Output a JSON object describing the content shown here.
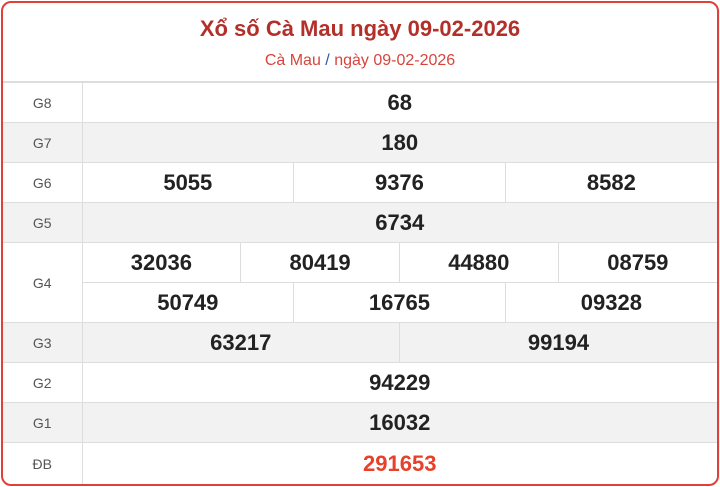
{
  "header": {
    "title": "Xổ số Cà Mau ngày 09-02-2026",
    "breadcrumb_province": "Cà Mau",
    "breadcrumb_separator": "/",
    "breadcrumb_date": "ngày 09-02-2026"
  },
  "colors": {
    "border": "#e0403a",
    "title": "#b3302a",
    "special_prize": "#e8412a",
    "alt_row": "#f2f2f2"
  },
  "prizes": {
    "g8": {
      "label": "G8",
      "numbers": [
        "68"
      ]
    },
    "g7": {
      "label": "G7",
      "numbers": [
        "180"
      ]
    },
    "g6": {
      "label": "G6",
      "numbers": [
        "5055",
        "9376",
        "8582"
      ]
    },
    "g5": {
      "label": "G5",
      "numbers": [
        "6734"
      ]
    },
    "g4": {
      "label": "G4",
      "numbers": [
        "32036",
        "80419",
        "44880",
        "08759",
        "50749",
        "16765",
        "09328"
      ]
    },
    "g3": {
      "label": "G3",
      "numbers": [
        "63217",
        "99194"
      ]
    },
    "g2": {
      "label": "G2",
      "numbers": [
        "94229"
      ]
    },
    "g1": {
      "label": "G1",
      "numbers": [
        "16032"
      ]
    },
    "db": {
      "label": "ĐB",
      "numbers": [
        "291653"
      ]
    }
  }
}
